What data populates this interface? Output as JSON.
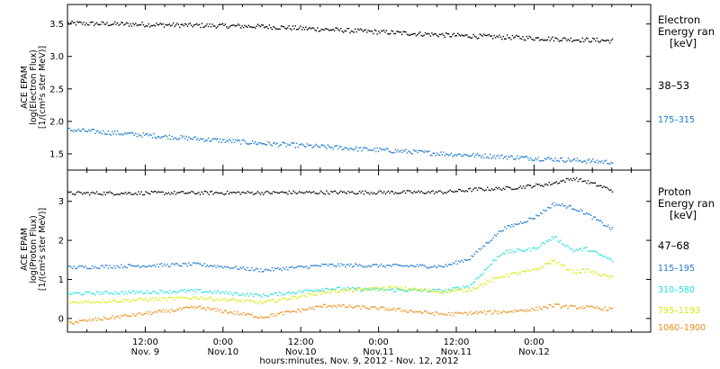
{
  "chart_data": [
    {
      "type": "scatter",
      "panel": "electron",
      "ylabel_lines": [
        "ACE EPAM",
        "log(Electron Flux)",
        "[1/(cm²s ster MeV)]"
      ],
      "yticks": [
        "1.5",
        "2.0",
        "2.5",
        "3.0",
        "3.5"
      ],
      "ylim": [
        1.25,
        3.8
      ],
      "legend_title_lines": [
        "Electron",
        "Energy ran",
        "[keV]"
      ],
      "legend_position": "right",
      "x_range_hours": [
        0,
        90
      ],
      "series": [
        {
          "name": "38–53",
          "color": "#000000",
          "x": [
            0,
            30,
            60,
            84
          ],
          "y": [
            3.52,
            3.47,
            3.33,
            3.25
          ]
        },
        {
          "name": "175–315",
          "color": "#1a78d0",
          "x": [
            0,
            30,
            60,
            84
          ],
          "y": [
            1.88,
            1.67,
            1.5,
            1.38
          ]
        }
      ]
    },
    {
      "type": "scatter",
      "panel": "proton",
      "ylabel_lines": [
        "ACE EPAM",
        "log(Proton Flux)",
        "[1/(cm²s ster MeV)]"
      ],
      "yticks": [
        "0",
        "1",
        "2",
        "3"
      ],
      "ylim": [
        -0.35,
        3.8
      ],
      "legend_title_lines": [
        "Proton",
        "Energy ran",
        "[keV]"
      ],
      "legend_position": "right",
      "x_range_hours": [
        0,
        90
      ],
      "series": [
        {
          "name": "47–68",
          "color": "#000000",
          "x": [
            0,
            58,
            63,
            68,
            74,
            78,
            80,
            84
          ],
          "y": [
            3.22,
            3.25,
            3.32,
            3.35,
            3.45,
            3.6,
            3.52,
            3.3
          ]
        },
        {
          "name": "115–195",
          "color": "#1a78d0",
          "x": [
            0,
            20,
            30,
            40,
            58,
            62,
            67,
            72,
            75,
            78,
            80,
            84
          ],
          "y": [
            1.32,
            1.4,
            1.25,
            1.38,
            1.35,
            1.55,
            2.3,
            2.6,
            2.95,
            2.85,
            2.7,
            2.3
          ]
        },
        {
          "name": "310–580",
          "color": "#22dede",
          "x": [
            0,
            20,
            30,
            40,
            58,
            62,
            67,
            72,
            75,
            78,
            80,
            84
          ],
          "y": [
            0.65,
            0.72,
            0.6,
            0.78,
            0.72,
            0.85,
            1.7,
            1.8,
            2.1,
            1.75,
            1.8,
            1.5
          ]
        },
        {
          "name": "795–1193",
          "color": "#d8e80a",
          "x": [
            0,
            20,
            30,
            40,
            50,
            58,
            62,
            67,
            72,
            75,
            78,
            80,
            84
          ],
          "y": [
            0.42,
            0.55,
            0.42,
            0.7,
            0.8,
            0.7,
            0.75,
            1.1,
            1.25,
            1.5,
            1.2,
            1.25,
            1.05
          ]
        },
        {
          "name": "1060–1900",
          "color": "#ee8a10",
          "x": [
            0,
            20,
            30,
            40,
            50,
            58,
            62,
            67,
            72,
            75,
            78,
            80,
            84
          ],
          "y": [
            -0.1,
            0.3,
            0.05,
            0.35,
            0.25,
            0.12,
            0.15,
            0.18,
            0.25,
            0.35,
            0.3,
            0.3,
            0.25
          ]
        }
      ]
    }
  ],
  "xaxis": {
    "tick_times": [
      "12:00",
      "0:00",
      "12:00",
      "0:00",
      "12:00",
      "0:00"
    ],
    "tick_dates": [
      "Nov. 9",
      "Nov.10",
      "Nov.10",
      "Nov.11",
      "Nov.11",
      "Nov.12"
    ],
    "tick_hours": [
      12,
      24,
      36,
      48,
      60,
      72
    ],
    "label": "hours:minutes, Nov.  9, 2012 - Nov. 12, 2012"
  }
}
